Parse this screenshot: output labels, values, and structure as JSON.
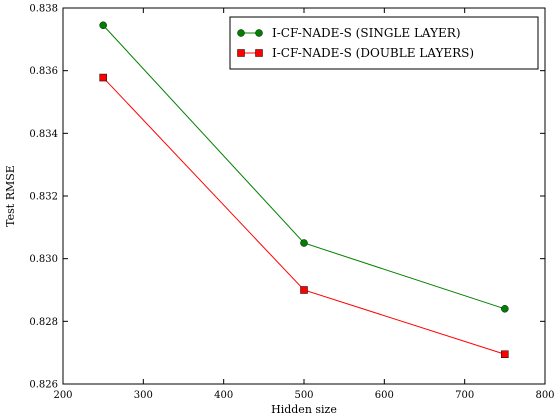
{
  "chart_data": {
    "type": "line",
    "xlabel": "Hidden size",
    "ylabel": "Test RMSE",
    "xlim": [
      200,
      800
    ],
    "ylim": [
      0.826,
      0.838
    ],
    "xticks": [
      "200",
      "300",
      "400",
      "500",
      "600",
      "700",
      "800"
    ],
    "yticks": [
      "0.826",
      "0.828",
      "0.830",
      "0.832",
      "0.834",
      "0.836",
      "0.838"
    ],
    "x": [
      250,
      500,
      750
    ],
    "series": [
      {
        "name": "I-CF-NADE-S (SINGLE LAYER)",
        "values": [
          0.83745,
          0.8305,
          0.8284
        ],
        "color": "#008000",
        "marker": "circle"
      },
      {
        "name": "I-CF-NADE-S (DOUBLE LAYERS)",
        "values": [
          0.83578,
          0.829,
          0.82695
        ],
        "color": "#ff0000",
        "marker": "square"
      }
    ],
    "legend_position": "top-right",
    "grid": false
  }
}
